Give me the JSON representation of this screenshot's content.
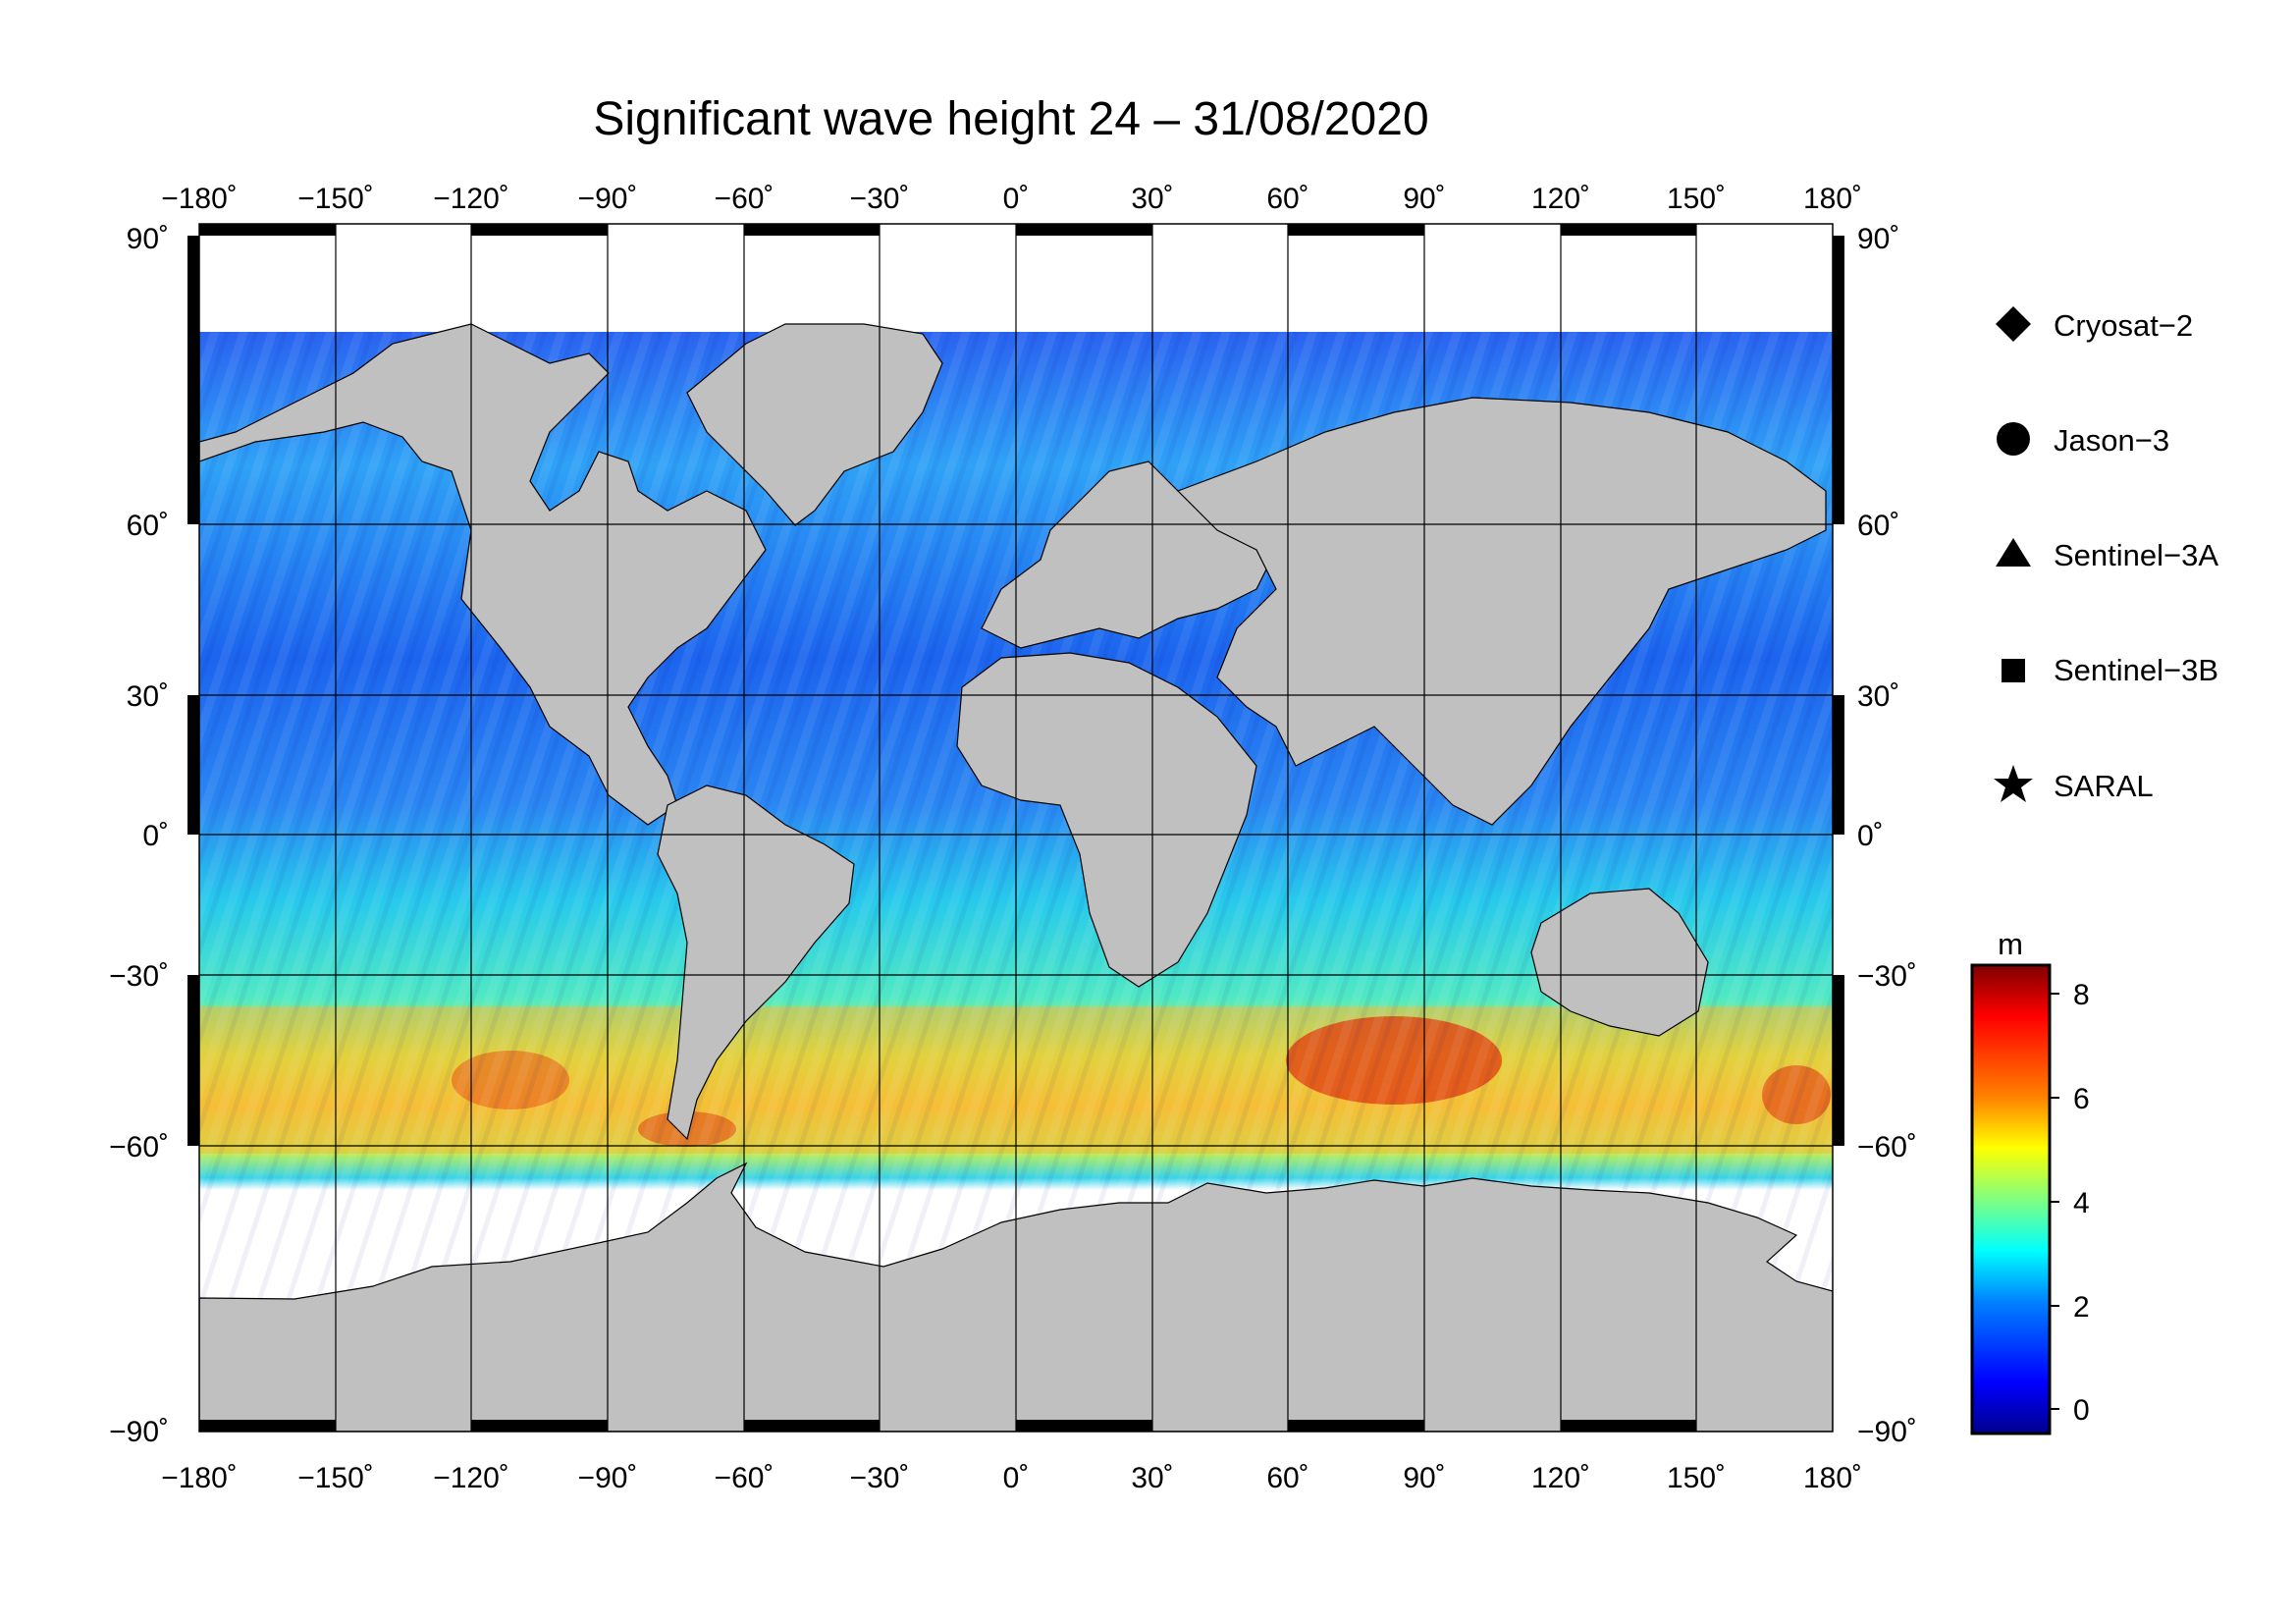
{
  "title": "Significant wave height 24 – 31/08/2020",
  "map": {
    "lon_ticks": [
      "−180˚",
      "−150˚",
      "−120˚",
      "−90˚",
      "−60˚",
      "−30˚",
      "0˚",
      "30˚",
      "60˚",
      "90˚",
      "120˚",
      "150˚",
      "180˚"
    ],
    "lat_ticks_left": [
      "90˚",
      "60˚",
      "30˚",
      "0˚",
      "−30˚",
      "−60˚",
      "−90˚"
    ],
    "lat_ticks_right": [
      "90˚",
      "60˚",
      "30˚",
      "0˚",
      "−30˚",
      "−60˚",
      "−90˚"
    ],
    "lon_range": [
      -180,
      180
    ],
    "lat_range": [
      -90,
      90
    ],
    "land_color": "#c0c0c0",
    "ice_color": "#ffffff"
  },
  "legend": {
    "items": [
      {
        "label": "Cryosat−2",
        "symbol": "diamond"
      },
      {
        "label": "Jason−3",
        "symbol": "circle"
      },
      {
        "label": "Sentinel−3A",
        "symbol": "triangle"
      },
      {
        "label": "Sentinel−3B",
        "symbol": "square"
      },
      {
        "label": "SARAL",
        "symbol": "star"
      }
    ]
  },
  "colorbar": {
    "unit": "m",
    "ticks": [
      "8",
      "6",
      "4",
      "2",
      "0"
    ],
    "range": [
      -0.5,
      8.5
    ],
    "colors": [
      "#00008f",
      "#0000ff",
      "#0080ff",
      "#00ffff",
      "#80ff80",
      "#ffff00",
      "#ff8000",
      "#ff0000",
      "#800000"
    ]
  }
}
